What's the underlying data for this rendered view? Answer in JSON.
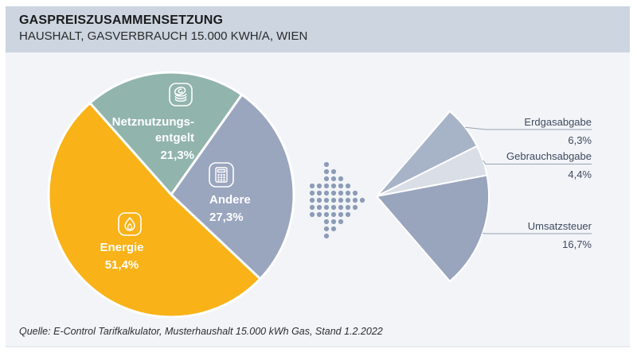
{
  "header": {
    "title": "GASPREISZUSAMMENSETZUNG",
    "subtitle": "HAUSHALT, GASVERBRAUCH 15.000 KWH/A, WIEN"
  },
  "footer": {
    "source": "Quelle: E-Control Tarifkalkulator, Musterhaushalt 15.000 kWh Gas, Stand 1.2.2022"
  },
  "colors": {
    "header_band": "#ccd5e0",
    "panel_bg": "#f2f4f8",
    "slice_gap": "#ffffff",
    "dot_arrow": "#8d9cb6",
    "leader_line": "#97a2b2",
    "fan_label_text": "#3f4a5e",
    "slice_label_text": "#ffffff"
  },
  "chart_data": {
    "type": "pie",
    "title": "Gaspreiszusammensetzung Haushalt, Gasverbrauch 15.000 kWh/a, Wien",
    "units": "%",
    "rotation_deg": 131.5,
    "legend_position": "on-slices",
    "slices": [
      {
        "name": "Netznutzungsentgelt",
        "display_lines": [
          "Netznutzungs-",
          "entgelt"
        ],
        "value": 21.3,
        "pct_label": "21,3%",
        "color": "#91b4ac",
        "icon": "coins-stack-icon"
      },
      {
        "name": "Andere",
        "value": 27.3,
        "pct_label": "27,3%",
        "color": "#9aa5be",
        "icon": "calculator-icon"
      },
      {
        "name": "Energie",
        "value": 51.4,
        "pct_label": "51,4%",
        "color": "#f9b217",
        "icon": "flame-icon"
      }
    ],
    "detail_of": "Andere",
    "detail_slices": [
      {
        "name": "Erdgasabgabe",
        "value": 6.3,
        "pct_label": "6,3%",
        "color": "#a7b3c7"
      },
      {
        "name": "Gebrauchsabgabe",
        "value": 4.4,
        "pct_label": "4,4%",
        "color": "#d9dee7"
      },
      {
        "name": "Umsatzsteuer",
        "value": 16.7,
        "pct_label": "16,7%",
        "color": "#99a5bd"
      }
    ]
  }
}
